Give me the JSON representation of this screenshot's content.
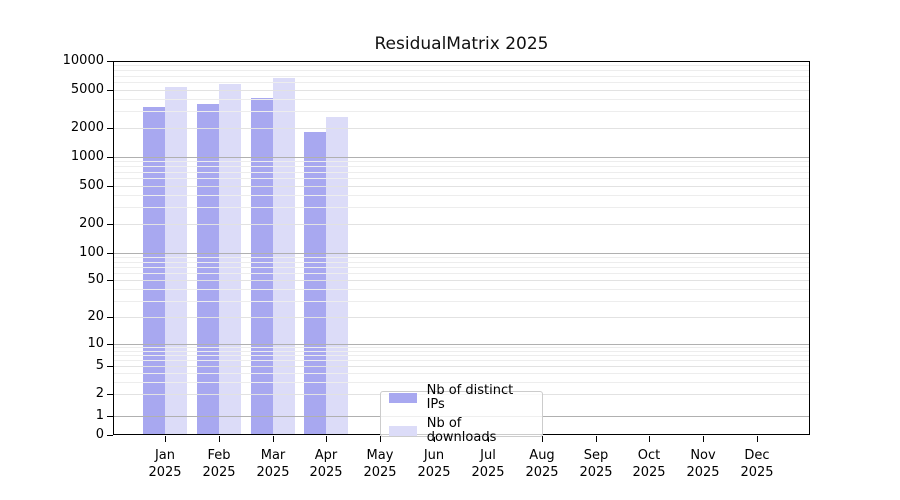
{
  "title": "ResidualMatrix 2025",
  "colors": {
    "bar_distinct_ips": "#a8a8f0",
    "bar_downloads": "#dcdcf8",
    "grid_major": "#b0b0b0",
    "grid_labeled_minor": "#e2e2e2",
    "grid_minor": "#ededed",
    "spine": "#000000",
    "legend_border": "#cccccc"
  },
  "legend": {
    "items": [
      {
        "label": "Nb of distinct IPs",
        "color": "#a8a8f0"
      },
      {
        "label": "Nb of downloads",
        "color": "#dcdcf8"
      }
    ]
  },
  "chart_data": {
    "type": "bar",
    "title": "ResidualMatrix 2025",
    "categories": [
      "Jan 2025",
      "Feb 2025",
      "Mar 2025",
      "Apr 2025",
      "May 2025",
      "Jun 2025",
      "Jul 2025",
      "Aug 2025",
      "Sep 2025",
      "Oct 2025",
      "Nov 2025",
      "Dec 2025"
    ],
    "series": [
      {
        "name": "Nb of distinct IPs",
        "color": "#a8a8f0",
        "values": [
          3300,
          3600,
          4100,
          1800,
          null,
          null,
          null,
          null,
          null,
          null,
          null,
          null
        ]
      },
      {
        "name": "Nb of downloads",
        "color": "#dcdcf8",
        "values": [
          5400,
          5800,
          6600,
          2600,
          null,
          null,
          null,
          null,
          null,
          null,
          null,
          null
        ]
      }
    ],
    "xlabel": "",
    "ylabel": "",
    "yscale": "symlog",
    "ylim": [
      0,
      10000
    ],
    "yticks": [
      0,
      1,
      2,
      5,
      10,
      20,
      50,
      100,
      200,
      500,
      1000,
      2000,
      5000,
      10000
    ],
    "grid": true,
    "grid_position": "above-bars",
    "legend_position": "lower center"
  }
}
